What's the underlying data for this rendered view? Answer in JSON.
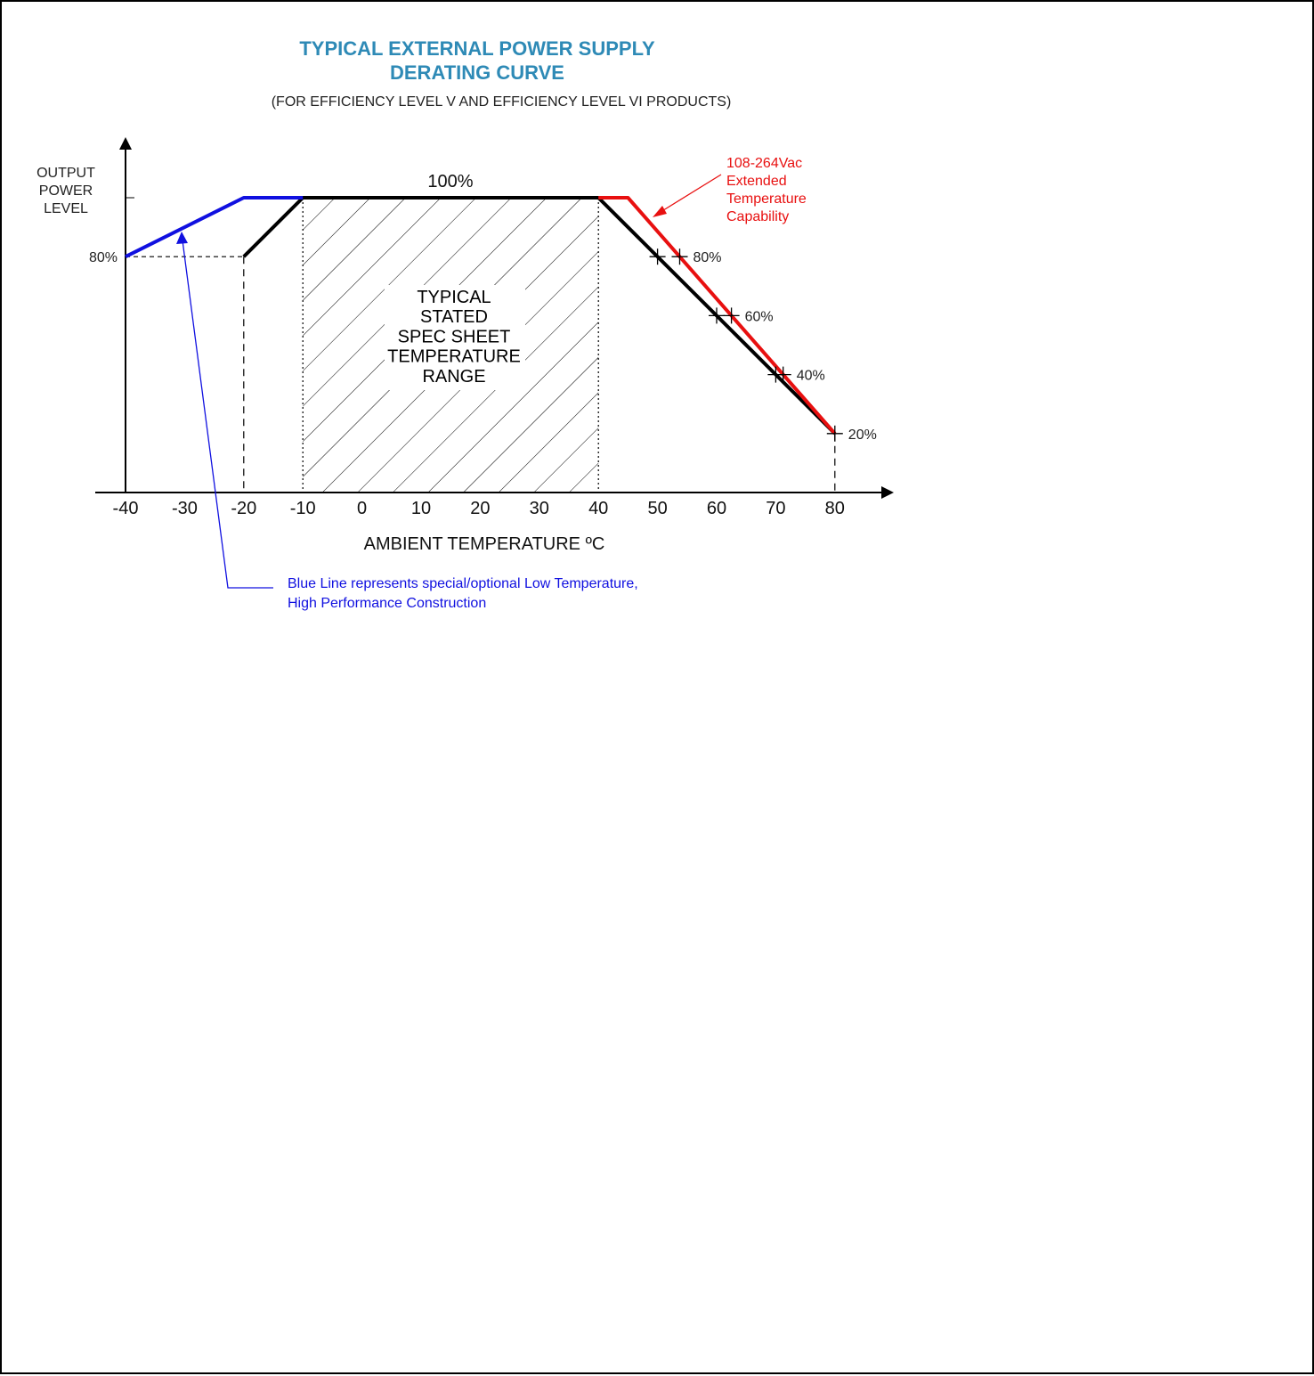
{
  "chart_data": {
    "type": "line",
    "title": [
      "TYPICAL EXTERNAL POWER SUPPLY",
      "DERATING CURVE"
    ],
    "subtitle": "(FOR EFFICIENCY LEVEL V AND EFFICIENCY LEVEL VI PRODUCTS)",
    "xlabel": "AMBIENT TEMPERATURE ºC",
    "ylabel": [
      "OUTPUT",
      "POWER",
      "LEVEL"
    ],
    "x_ticks": [
      -40,
      -30,
      -20,
      -10,
      0,
      10,
      20,
      30,
      40,
      50,
      60,
      70,
      80
    ],
    "x_tick_labels": [
      "-40",
      "-30",
      "-20",
      "-10",
      "0",
      "10",
      "20",
      "30",
      "40",
      "50",
      "60",
      "70",
      "80"
    ],
    "xlim": [
      -40,
      80
    ],
    "ylim": [
      0,
      100
    ],
    "y_tick_label": "80%",
    "top_label": "100%",
    "grid": false,
    "colors": {
      "title": "#2e8ab6",
      "blue": "#1010e0",
      "red": "#e81010",
      "black": "#000000"
    },
    "series": [
      {
        "color": "#000000",
        "points": [
          [
            -20,
            80
          ],
          [
            -10,
            100
          ],
          [
            40,
            100
          ],
          [
            80,
            20
          ]
        ]
      },
      {
        "color": "#1010e0",
        "points": [
          [
            -40,
            80
          ],
          [
            -20,
            100
          ],
          [
            -10,
            100
          ]
        ]
      },
      {
        "color": "#e81010",
        "points": [
          [
            40,
            100
          ],
          [
            45,
            100
          ],
          [
            80,
            20
          ]
        ]
      }
    ],
    "shaded_region": {
      "x": [
        -10,
        40
      ],
      "label": [
        "TYPICAL",
        "STATED",
        "SPEC SHEET",
        "TEMPERATURE",
        "RANGE"
      ]
    },
    "markers": [
      {
        "label": "80%",
        "x_black": 50,
        "x_red": 53.75,
        "y": 80
      },
      {
        "label": "60%",
        "x_black": 60,
        "x_red": 62.5,
        "y": 60
      },
      {
        "label": "40%",
        "x_black": 70,
        "x_red": 71.25,
        "y": 40
      },
      {
        "label": "20%",
        "x_black": 80,
        "x_red": 80,
        "y": 20
      }
    ],
    "annotations": {
      "red": [
        "108-264Vac",
        "Extended",
        "Temperature",
        "Capability"
      ],
      "blue": [
        "Blue Line represents special/optional Low Temperature,",
        "High Performance Construction"
      ]
    }
  }
}
